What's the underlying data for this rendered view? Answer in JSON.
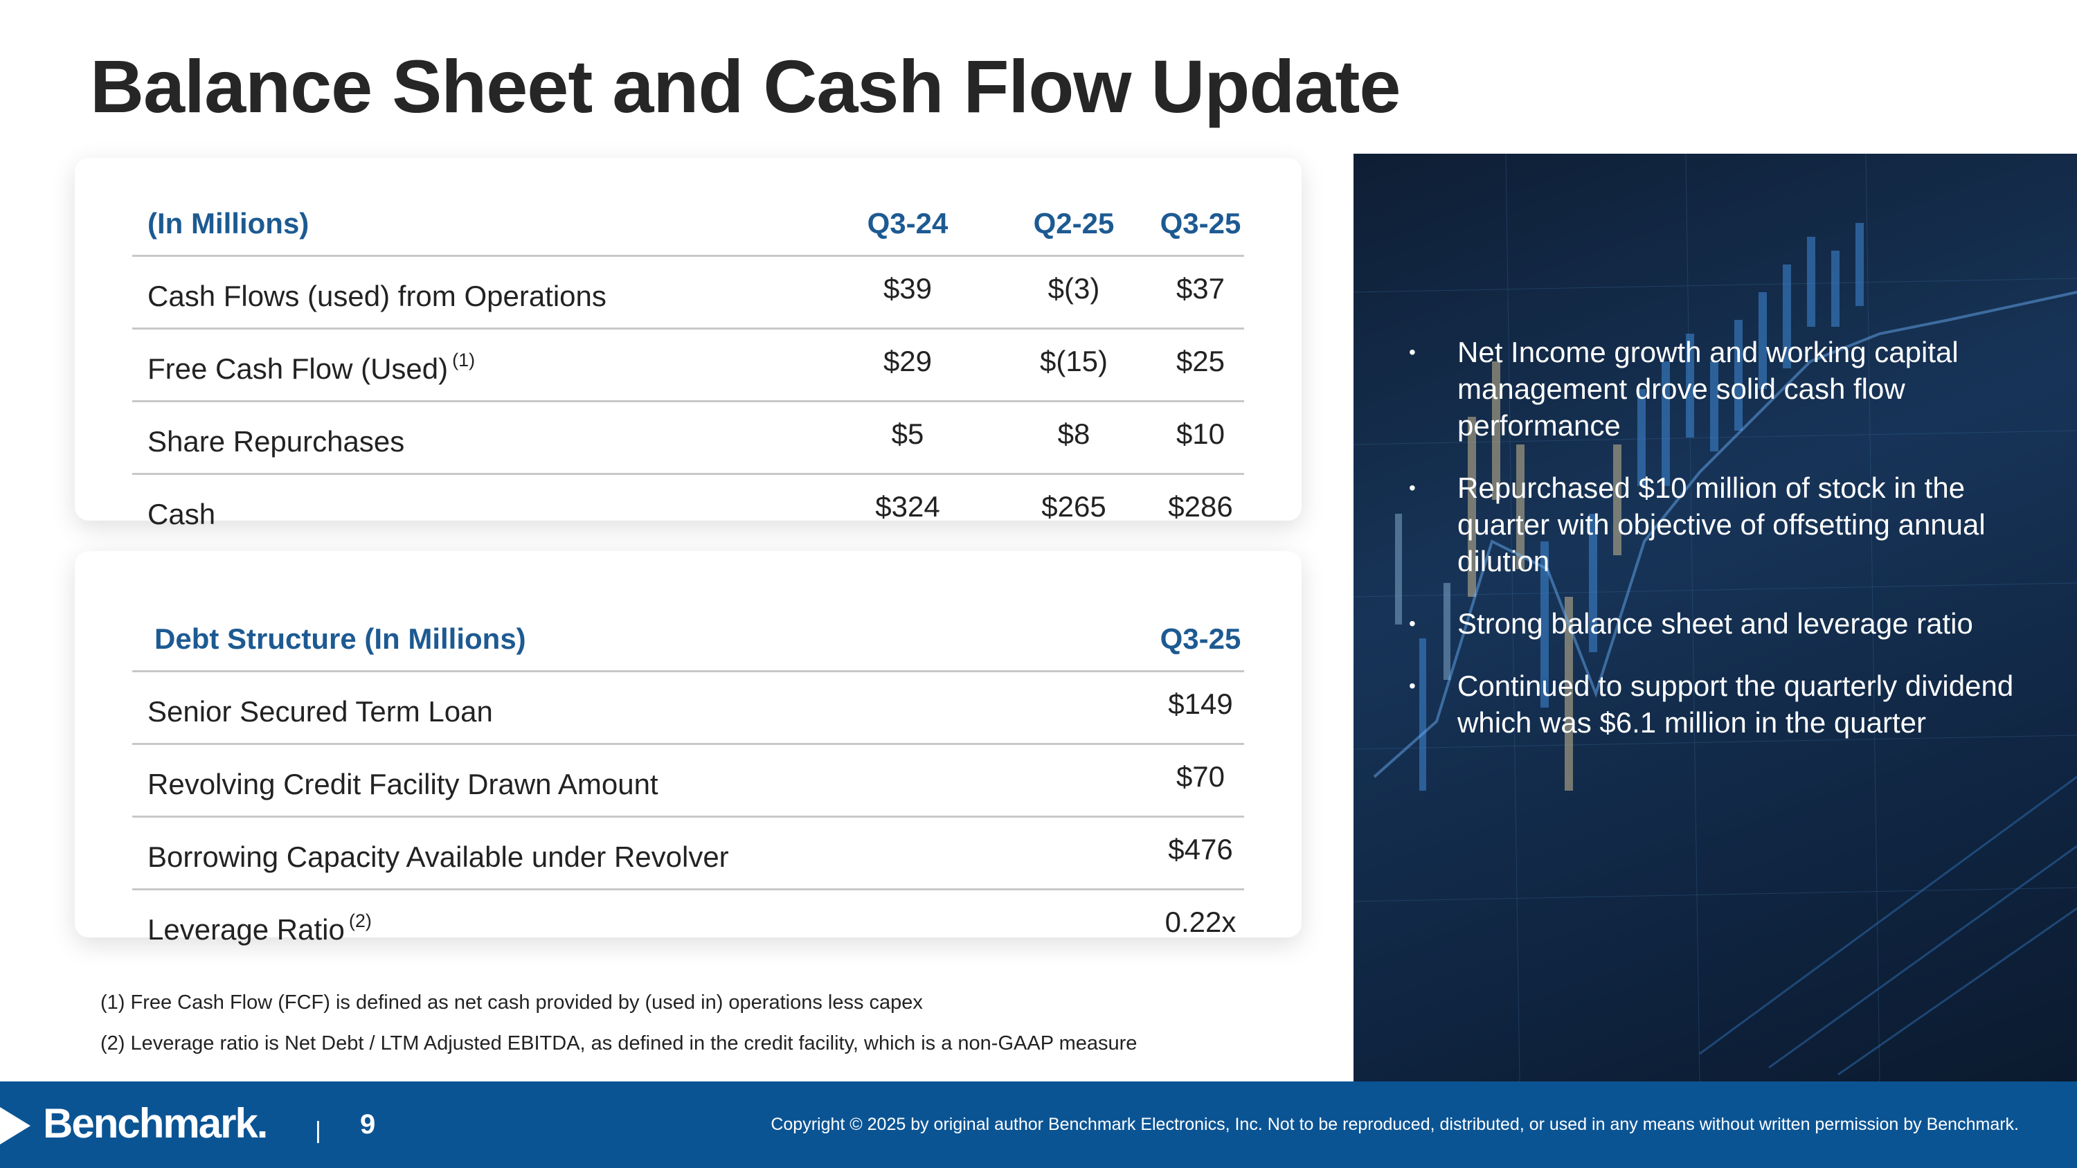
{
  "title": "Balance Sheet and Cash Flow Update",
  "cash_table": {
    "header": {
      "label": "(In Millions)",
      "cols": [
        "Q3-24",
        "Q2-25",
        "Q3-25"
      ]
    },
    "rows": [
      {
        "label": "Cash Flows (used) from Operations",
        "sup": "",
        "values": [
          "$39",
          "$(3)",
          "$37"
        ]
      },
      {
        "label": "Free Cash Flow (Used)",
        "sup": "(1)",
        "values": [
          "$29",
          "$(15)",
          "$25"
        ]
      },
      {
        "label": "Share Repurchases",
        "sup": "",
        "values": [
          "$5",
          "$8",
          "$10"
        ]
      },
      {
        "label": "Cash",
        "sup": "",
        "values": [
          "$324",
          "$265",
          "$286"
        ]
      }
    ]
  },
  "debt_table": {
    "header": {
      "label": "Debt Structure (In Millions)",
      "col": "Q3-25"
    },
    "rows": [
      {
        "label": "Senior Secured Term Loan",
        "sup": "",
        "value": "$149"
      },
      {
        "label": "Revolving Credit Facility Drawn Amount",
        "sup": "",
        "value": "$70"
      },
      {
        "label": "Borrowing Capacity Available under Revolver",
        "sup": "",
        "value": "$476"
      },
      {
        "label": "Leverage Ratio",
        "sup": "(2)",
        "value": "0.22x"
      }
    ]
  },
  "footnotes": [
    "(1) Free Cash Flow (FCF) is defined as net cash provided by (used in) operations less capex",
    "(2) Leverage ratio is Net Debt / LTM Adjusted EBITDA, as defined in the credit facility, which is a non-GAAP measure"
  ],
  "bullets": [
    "Net Income growth and working capital management drove solid cash flow performance",
    "Repurchased $10 million of stock in the quarter with objective of offsetting annual dilution",
    "Strong balance sheet and leverage ratio",
    "Continued to support the quarterly dividend which was $6.1 million in the quarter"
  ],
  "bullet_marker": "•",
  "footer": {
    "logo_text": "Benchmark.",
    "separator": "|",
    "page_number": "9",
    "copyright": "Copyright © 2025 by original author Benchmark Electronics, Inc. Not to be reproduced, distributed, or used in any means without written permission by Benchmark."
  },
  "colors": {
    "accent": "#1d5a92",
    "footer": "#0b5494",
    "photo_bg": "#173458"
  },
  "photo_icon": "stock-chart-photo"
}
